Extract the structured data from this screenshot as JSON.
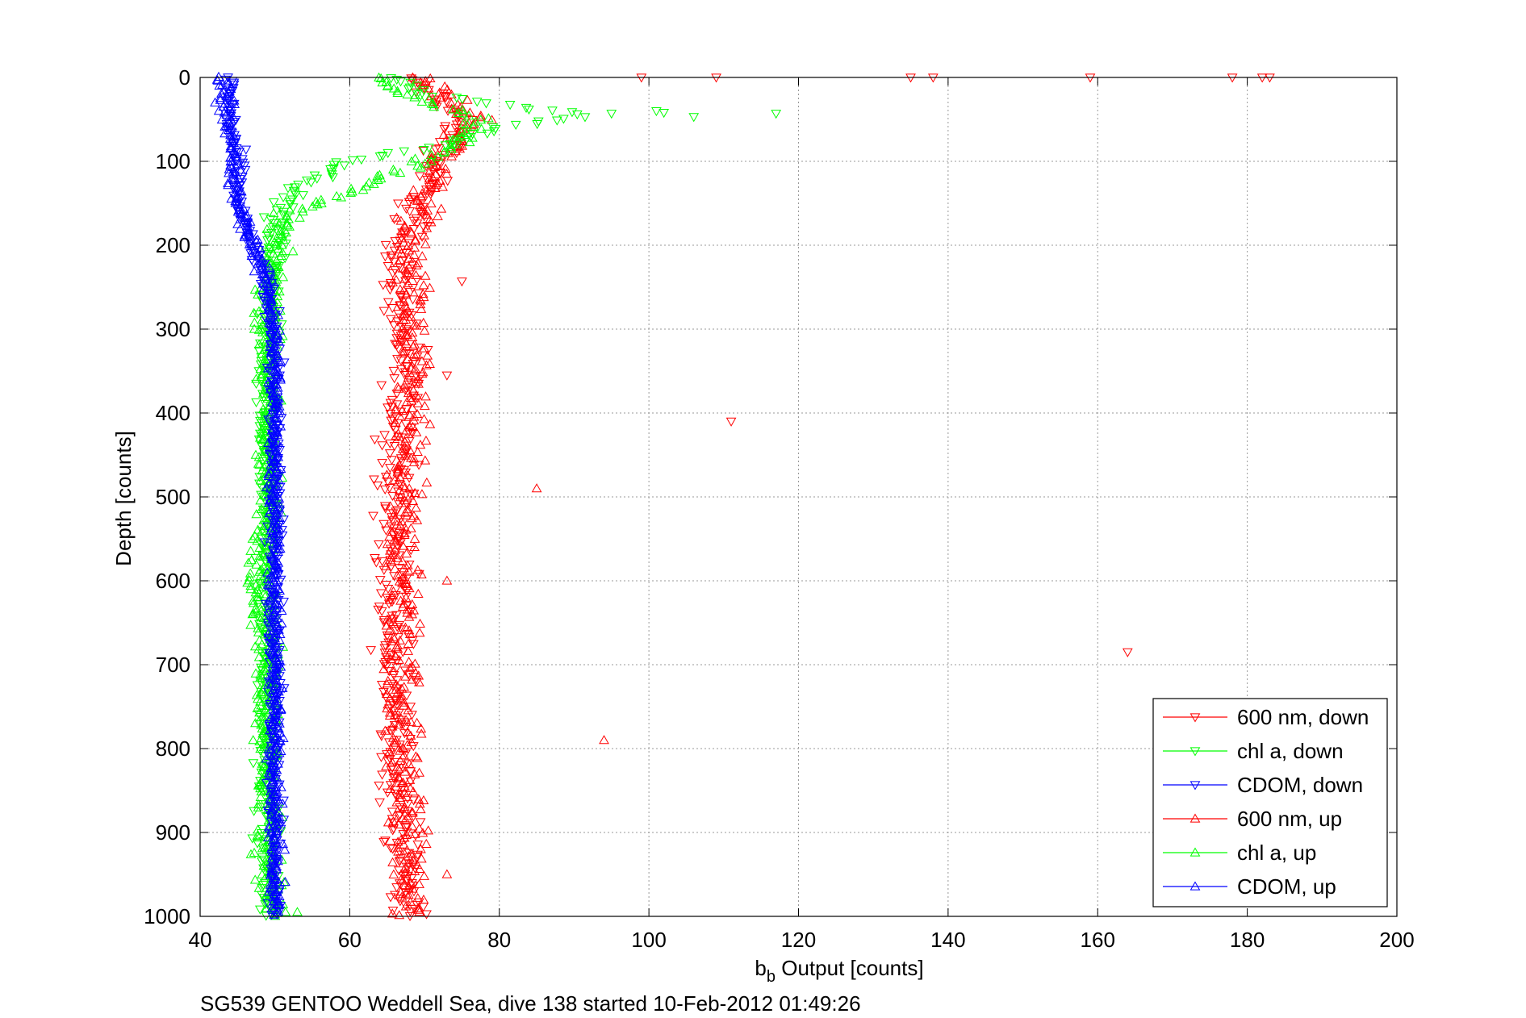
{
  "chart_data": {
    "type": "scatter",
    "title": "",
    "xlabel_main": "b",
    "xlabel_sub": "b",
    "xlabel_rest": " Output [counts]",
    "ylabel": "Depth [counts]",
    "caption": "SG539 GENTOO Weddell Sea, dive 138 started 10-Feb-2012 01:49:26",
    "xlim": [
      40,
      200
    ],
    "ylim": [
      0,
      1000
    ],
    "y_reversed": true,
    "xticks": [
      40,
      60,
      80,
      100,
      120,
      140,
      160,
      180,
      200
    ],
    "yticks": [
      0,
      100,
      200,
      300,
      400,
      500,
      600,
      700,
      800,
      900,
      1000
    ],
    "grid": true,
    "legend_position": "bottom-right",
    "colors": {
      "red": "#ff0000",
      "green": "#00ff00",
      "blue": "#0000ff"
    },
    "series": [
      {
        "name": "600 nm, down",
        "color": "#ff0000",
        "marker": "triangle-down",
        "profile": [
          [
            0,
            68
          ],
          [
            50,
            75
          ],
          [
            100,
            72
          ],
          [
            150,
            69
          ],
          [
            200,
            67
          ],
          [
            300,
            67
          ],
          [
            400,
            67
          ],
          [
            500,
            66
          ],
          [
            600,
            66
          ],
          [
            700,
            66
          ],
          [
            800,
            66
          ],
          [
            900,
            67
          ],
          [
            1000,
            68
          ]
        ],
        "spread": 2.5,
        "outliers": [
          [
            109,
            0
          ],
          [
            135,
            0
          ],
          [
            138,
            0
          ],
          [
            159,
            0
          ],
          [
            178,
            0
          ],
          [
            182,
            0
          ],
          [
            183,
            0
          ],
          [
            99,
            0
          ],
          [
            111,
            410
          ],
          [
            164,
            685
          ],
          [
            75,
            243
          ],
          [
            73,
            355
          ]
        ]
      },
      {
        "name": "chl a, down",
        "color": "#00ff00",
        "marker": "triangle-down",
        "profile": [
          [
            0,
            66
          ],
          [
            20,
            70
          ],
          [
            45,
            92
          ],
          [
            60,
            80
          ],
          [
            80,
            73
          ],
          [
            100,
            60
          ],
          [
            140,
            52
          ],
          [
            170,
            50
          ],
          [
            200,
            50
          ],
          [
            300,
            49
          ],
          [
            400,
            49
          ],
          [
            500,
            49
          ],
          [
            600,
            49
          ],
          [
            700,
            49
          ],
          [
            800,
            49
          ],
          [
            900,
            49
          ],
          [
            1000,
            49
          ]
        ],
        "spread": 1.5,
        "outliers": [
          [
            101,
            40
          ],
          [
            102,
            42
          ],
          [
            106,
            47
          ],
          [
            117,
            43
          ],
          [
            95,
            43
          ]
        ]
      },
      {
        "name": "CDOM, down",
        "color": "#0000ff",
        "marker": "triangle-down",
        "profile": [
          [
            0,
            44
          ],
          [
            50,
            44
          ],
          [
            100,
            45
          ],
          [
            150,
            45
          ],
          [
            200,
            47
          ],
          [
            250,
            49
          ],
          [
            300,
            50
          ],
          [
            400,
            50
          ],
          [
            500,
            50
          ],
          [
            600,
            50
          ],
          [
            700,
            50
          ],
          [
            800,
            50
          ],
          [
            900,
            50
          ],
          [
            1000,
            50
          ]
        ],
        "spread": 1.0,
        "outliers": []
      },
      {
        "name": "600 nm, up",
        "color": "#ff0000",
        "marker": "triangle-up",
        "profile": [
          [
            0,
            69
          ],
          [
            50,
            77
          ],
          [
            100,
            72
          ],
          [
            150,
            70
          ],
          [
            200,
            68
          ],
          [
            300,
            68
          ],
          [
            400,
            68
          ],
          [
            500,
            67
          ],
          [
            600,
            67
          ],
          [
            700,
            67
          ],
          [
            800,
            67
          ],
          [
            900,
            68
          ],
          [
            1000,
            68
          ]
        ],
        "spread": 2.5,
        "outliers": [
          [
            85,
            490
          ],
          [
            94,
            790
          ],
          [
            73,
            950
          ],
          [
            73,
            600
          ]
        ]
      },
      {
        "name": "chl a, up",
        "color": "#00ff00",
        "marker": "triangle-up",
        "profile": [
          [
            0,
            64
          ],
          [
            20,
            68
          ],
          [
            50,
            78
          ],
          [
            80,
            74
          ],
          [
            100,
            70
          ],
          [
            130,
            62
          ],
          [
            160,
            52
          ],
          [
            200,
            50
          ],
          [
            300,
            49
          ],
          [
            400,
            49
          ],
          [
            500,
            49
          ],
          [
            600,
            48
          ],
          [
            700,
            49
          ],
          [
            800,
            49
          ],
          [
            900,
            49
          ],
          [
            1000,
            50
          ]
        ],
        "spread": 1.8,
        "outliers": [
          [
            53,
            995
          ],
          [
            47,
            640
          ]
        ]
      },
      {
        "name": "CDOM, up",
        "color": "#0000ff",
        "marker": "triangle-up",
        "profile": [
          [
            0,
            43
          ],
          [
            50,
            44
          ],
          [
            100,
            44
          ],
          [
            150,
            45
          ],
          [
            200,
            47
          ],
          [
            250,
            49
          ],
          [
            300,
            50
          ],
          [
            400,
            50
          ],
          [
            500,
            50
          ],
          [
            600,
            50
          ],
          [
            700,
            50
          ],
          [
            800,
            50
          ],
          [
            900,
            50
          ],
          [
            1000,
            50
          ]
        ],
        "spread": 1.0,
        "outliers": [
          [
            42,
            30
          ]
        ]
      }
    ]
  }
}
